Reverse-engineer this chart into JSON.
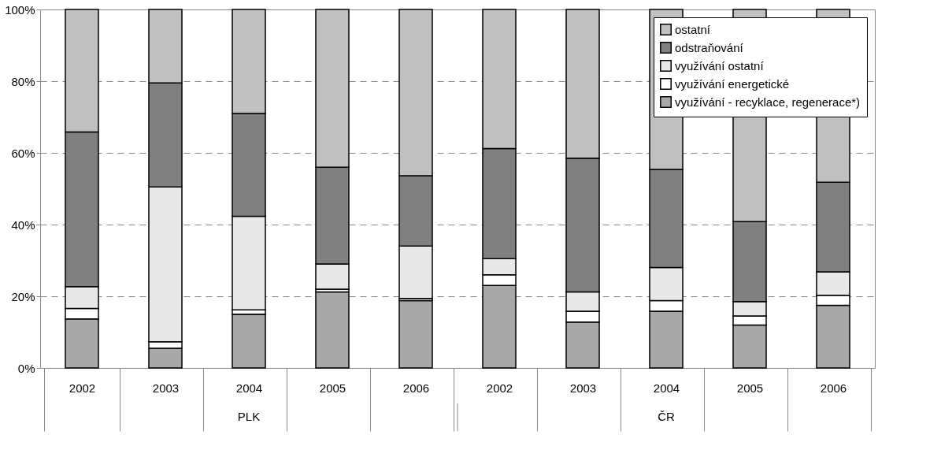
{
  "chart_data": {
    "type": "bar",
    "stacked": true,
    "categories": [
      "2002",
      "2003",
      "2004",
      "2005",
      "2006",
      "2002",
      "2003",
      "2004",
      "2005",
      "2006"
    ],
    "series": [
      {
        "name": "využívání - recyklace, regenerace*)",
        "color": "#a8a8a8",
        "values": [
          13.7,
          5.5,
          15,
          21.2,
          18.8,
          23,
          12.8,
          15.8,
          12,
          17.5
        ]
      },
      {
        "name": "využívání energetické",
        "color": "#ffffff",
        "values": [
          2.9,
          1.8,
          1.2,
          0.8,
          0.6,
          3,
          3,
          3,
          2.5,
          2.8
        ]
      },
      {
        "name": "využívání ostatní",
        "color": "#e8e8e8",
        "values": [
          6.1,
          43.2,
          26.1,
          7,
          14.6,
          4.5,
          5.4,
          9.2,
          4,
          6.5
        ]
      },
      {
        "name": "odstraňování",
        "color": "#808080",
        "values": [
          43.1,
          29,
          28.7,
          27,
          19.6,
          30.7,
          37.3,
          27.4,
          22.3,
          25
        ]
      },
      {
        "name": "ostatní",
        "color": "#c0c0c0",
        "values": [
          34.2,
          20.5,
          29,
          44,
          46.4,
          38.8,
          41.5,
          44.6,
          59.2,
          48.2
        ]
      }
    ],
    "ylim": [
      0,
      100
    ],
    "yticks": [
      {
        "value": 0,
        "label": "0%"
      },
      {
        "value": 20,
        "label": "20%"
      },
      {
        "value": 40,
        "label": "40%"
      },
      {
        "value": 60,
        "label": "60%"
      },
      {
        "value": 80,
        "label": "80%"
      },
      {
        "value": 100,
        "label": "100%"
      }
    ],
    "grid": "y",
    "legend": "top right",
    "annotations": [
      "PLK",
      "ČR"
    ]
  }
}
